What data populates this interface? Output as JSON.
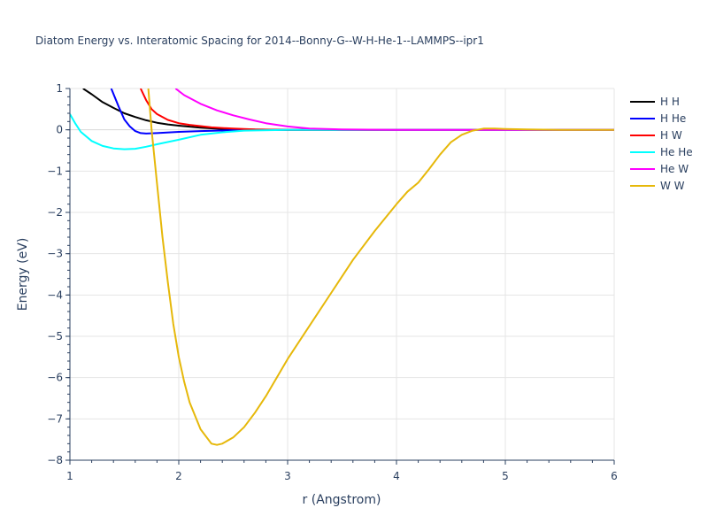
{
  "chart_data": {
    "type": "line",
    "title": "Diatom Energy vs. Interatomic Spacing for 2014--Bonny-G--W-H-He-1--LAMMPS--ipr1",
    "xlabel": "r (Angstrom)",
    "ylabel": "Energy (eV)",
    "xlim": [
      1,
      6
    ],
    "ylim": [
      -8,
      1
    ],
    "xticks": [
      "1",
      "2",
      "3",
      "4",
      "5",
      "6"
    ],
    "yticks": [
      "1",
      "0",
      "−1",
      "−2",
      "−3",
      "−4",
      "−5",
      "−6",
      "−7",
      "−8"
    ],
    "grid": true,
    "legend": "right",
    "series": [
      {
        "name": "H H",
        "color": "#000000",
        "points": [
          [
            1.12,
            1.0
          ],
          [
            1.2,
            0.86
          ],
          [
            1.3,
            0.67
          ],
          [
            1.4,
            0.53
          ],
          [
            1.5,
            0.4
          ],
          [
            1.6,
            0.31
          ],
          [
            1.7,
            0.23
          ],
          [
            1.8,
            0.17
          ],
          [
            1.9,
            0.13
          ],
          [
            2.0,
            0.1
          ],
          [
            2.2,
            0.05
          ],
          [
            2.4,
            0.02
          ],
          [
            2.6,
            0.01
          ],
          [
            3.0,
            0.0
          ],
          [
            4.0,
            0.0
          ],
          [
            5.0,
            0.0
          ],
          [
            6.0,
            0.0
          ]
        ]
      },
      {
        "name": "H He",
        "color": "#0000ff",
        "points": [
          [
            1.38,
            1.0
          ],
          [
            1.45,
            0.55
          ],
          [
            1.5,
            0.25
          ],
          [
            1.55,
            0.08
          ],
          [
            1.6,
            -0.03
          ],
          [
            1.65,
            -0.08
          ],
          [
            1.7,
            -0.09
          ],
          [
            1.8,
            -0.08
          ],
          [
            2.0,
            -0.05
          ],
          [
            2.2,
            -0.03
          ],
          [
            2.5,
            -0.01
          ],
          [
            3.0,
            0.0
          ],
          [
            4.0,
            0.0
          ],
          [
            5.0,
            0.0
          ],
          [
            6.0,
            0.0
          ]
        ]
      },
      {
        "name": "H W",
        "color": "#ff0000",
        "points": [
          [
            1.65,
            1.0
          ],
          [
            1.7,
            0.72
          ],
          [
            1.75,
            0.5
          ],
          [
            1.8,
            0.38
          ],
          [
            1.9,
            0.24
          ],
          [
            2.0,
            0.16
          ],
          [
            2.1,
            0.12
          ],
          [
            2.2,
            0.09
          ],
          [
            2.3,
            0.06
          ],
          [
            2.5,
            0.03
          ],
          [
            2.7,
            0.01
          ],
          [
            3.0,
            0.0
          ],
          [
            4.0,
            0.0
          ],
          [
            5.0,
            0.0
          ],
          [
            6.0,
            0.0
          ]
        ]
      },
      {
        "name": "He He",
        "color": "#00ffff",
        "points": [
          [
            1.0,
            0.38
          ],
          [
            1.05,
            0.15
          ],
          [
            1.1,
            -0.05
          ],
          [
            1.2,
            -0.27
          ],
          [
            1.3,
            -0.39
          ],
          [
            1.4,
            -0.45
          ],
          [
            1.5,
            -0.47
          ],
          [
            1.6,
            -0.46
          ],
          [
            1.7,
            -0.41
          ],
          [
            1.8,
            -0.35
          ],
          [
            2.0,
            -0.24
          ],
          [
            2.2,
            -0.12
          ],
          [
            2.4,
            -0.06
          ],
          [
            2.6,
            -0.02
          ],
          [
            3.0,
            0.0
          ],
          [
            4.0,
            0.0
          ],
          [
            5.0,
            0.0
          ],
          [
            6.0,
            0.0
          ]
        ]
      },
      {
        "name": "He W",
        "color": "#ff00ff",
        "points": [
          [
            1.97,
            1.0
          ],
          [
            2.05,
            0.84
          ],
          [
            2.2,
            0.63
          ],
          [
            2.35,
            0.47
          ],
          [
            2.5,
            0.35
          ],
          [
            2.65,
            0.25
          ],
          [
            2.8,
            0.16
          ],
          [
            3.0,
            0.08
          ],
          [
            3.2,
            0.03
          ],
          [
            3.5,
            0.01
          ],
          [
            4.0,
            0.0
          ],
          [
            5.0,
            0.0
          ],
          [
            6.0,
            0.0
          ]
        ]
      },
      {
        "name": "W W",
        "color": "#e6b80a",
        "points": [
          [
            1.72,
            1.0
          ],
          [
            1.75,
            0.0
          ],
          [
            1.8,
            -1.3
          ],
          [
            1.85,
            -2.6
          ],
          [
            1.9,
            -3.7
          ],
          [
            1.95,
            -4.7
          ],
          [
            2.0,
            -5.5
          ],
          [
            2.05,
            -6.1
          ],
          [
            2.1,
            -6.6
          ],
          [
            2.2,
            -7.25
          ],
          [
            2.3,
            -7.6
          ],
          [
            2.35,
            -7.63
          ],
          [
            2.4,
            -7.6
          ],
          [
            2.5,
            -7.45
          ],
          [
            2.6,
            -7.2
          ],
          [
            2.7,
            -6.85
          ],
          [
            2.8,
            -6.45
          ],
          [
            3.0,
            -5.55
          ],
          [
            3.2,
            -4.75
          ],
          [
            3.4,
            -3.95
          ],
          [
            3.6,
            -3.15
          ],
          [
            3.8,
            -2.45
          ],
          [
            4.0,
            -1.8
          ],
          [
            4.1,
            -1.5
          ],
          [
            4.2,
            -1.28
          ],
          [
            4.3,
            -0.95
          ],
          [
            4.4,
            -0.6
          ],
          [
            4.5,
            -0.3
          ],
          [
            4.6,
            -0.12
          ],
          [
            4.7,
            -0.02
          ],
          [
            4.8,
            0.03
          ],
          [
            4.9,
            0.03
          ],
          [
            5.0,
            0.02
          ],
          [
            5.2,
            0.01
          ],
          [
            5.5,
            0.0
          ],
          [
            6.0,
            0.0
          ]
        ]
      }
    ]
  }
}
